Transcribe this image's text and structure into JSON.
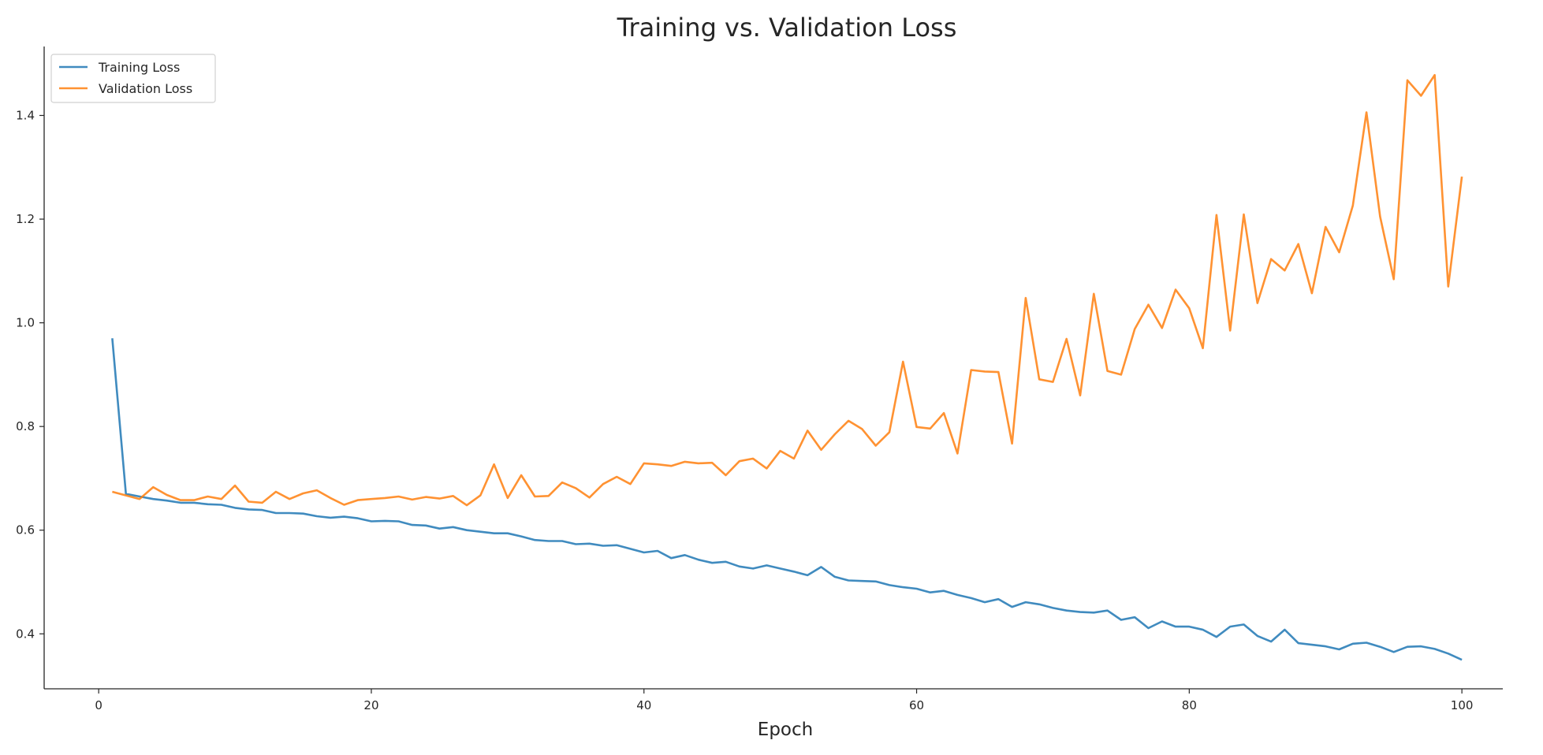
{
  "chart_data": {
    "type": "line",
    "title": "Training vs. Validation Loss",
    "xlabel": "Epoch",
    "ylabel": "",
    "xlim": [
      -4,
      103
    ],
    "ylim": [
      0.294,
      1.533
    ],
    "xticks": [
      0,
      20,
      40,
      60,
      80,
      100
    ],
    "yticks": [
      0.4,
      0.6,
      0.8,
      1.0,
      1.2,
      1.4
    ],
    "ytick_labels": [
      "0.4",
      "0.6",
      "0.8",
      "1.0",
      "1.2",
      "1.4"
    ],
    "grid": false,
    "legend_position": "top-left",
    "x": [
      1,
      2,
      3,
      4,
      5,
      6,
      7,
      8,
      9,
      10,
      11,
      12,
      13,
      14,
      15,
      16,
      17,
      18,
      19,
      20,
      21,
      22,
      23,
      24,
      25,
      26,
      27,
      28,
      29,
      30,
      31,
      32,
      33,
      34,
      35,
      36,
      37,
      38,
      39,
      40,
      41,
      42,
      43,
      44,
      45,
      46,
      47,
      48,
      49,
      50,
      51,
      52,
      53,
      54,
      55,
      56,
      57,
      58,
      59,
      60,
      61,
      62,
      63,
      64,
      65,
      66,
      67,
      68,
      69,
      70,
      71,
      72,
      73,
      74,
      75,
      76,
      77,
      78,
      79,
      80,
      81,
      82,
      83,
      84,
      85,
      86,
      87,
      88,
      89,
      90,
      91,
      92,
      93,
      94,
      95,
      96,
      97,
      98,
      99,
      100
    ],
    "series": [
      {
        "name": "Training Loss",
        "color": "#1f77b4",
        "values": [
          0.97,
          0.67,
          0.665,
          0.66,
          0.657,
          0.653,
          0.653,
          0.65,
          0.649,
          0.643,
          0.64,
          0.639,
          0.633,
          0.633,
          0.632,
          0.627,
          0.624,
          0.626,
          0.623,
          0.617,
          0.618,
          0.617,
          0.61,
          0.609,
          0.603,
          0.606,
          0.6,
          0.597,
          0.594,
          0.594,
          0.588,
          0.581,
          0.579,
          0.579,
          0.573,
          0.574,
          0.57,
          0.571,
          0.564,
          0.557,
          0.56,
          0.546,
          0.552,
          0.543,
          0.537,
          0.539,
          0.53,
          0.526,
          0.532,
          0.526,
          0.52,
          0.513,
          0.529,
          0.51,
          0.503,
          0.502,
          0.501,
          0.494,
          0.49,
          0.487,
          0.48,
          0.483,
          0.475,
          0.469,
          0.461,
          0.467,
          0.452,
          0.461,
          0.457,
          0.45,
          0.445,
          0.442,
          0.441,
          0.445,
          0.427,
          0.432,
          0.411,
          0.424,
          0.414,
          0.414,
          0.408,
          0.394,
          0.414,
          0.418,
          0.396,
          0.385,
          0.408,
          0.382,
          0.379,
          0.376,
          0.37,
          0.381,
          0.383,
          0.375,
          0.365,
          0.375,
          0.376,
          0.371,
          0.362,
          0.35
        ]
      },
      {
        "name": "Validation Loss",
        "color": "#ff7f0e",
        "values": [
          0.674,
          0.667,
          0.66,
          0.683,
          0.668,
          0.658,
          0.658,
          0.665,
          0.66,
          0.686,
          0.655,
          0.653,
          0.674,
          0.66,
          0.671,
          0.677,
          0.662,
          0.649,
          0.658,
          0.66,
          0.662,
          0.665,
          0.659,
          0.664,
          0.661,
          0.666,
          0.648,
          0.667,
          0.727,
          0.662,
          0.706,
          0.665,
          0.666,
          0.692,
          0.681,
          0.663,
          0.689,
          0.703,
          0.689,
          0.729,
          0.727,
          0.724,
          0.732,
          0.729,
          0.73,
          0.706,
          0.733,
          0.738,
          0.719,
          0.753,
          0.738,
          0.792,
          0.755,
          0.785,
          0.811,
          0.795,
          0.763,
          0.789,
          0.925,
          0.799,
          0.796,
          0.826,
          0.748,
          0.909,
          0.906,
          0.905,
          0.767,
          1.048,
          0.891,
          0.886,
          0.969,
          0.86,
          1.056,
          0.907,
          0.9,
          0.988,
          1.035,
          0.99,
          1.064,
          1.028,
          0.951,
          1.208,
          0.985,
          1.209,
          1.038,
          1.123,
          1.101,
          1.152,
          1.057,
          1.185,
          1.136,
          1.226,
          1.406,
          1.205,
          1.084,
          1.468,
          1.438,
          1.478,
          1.07,
          1.282
        ]
      }
    ]
  }
}
